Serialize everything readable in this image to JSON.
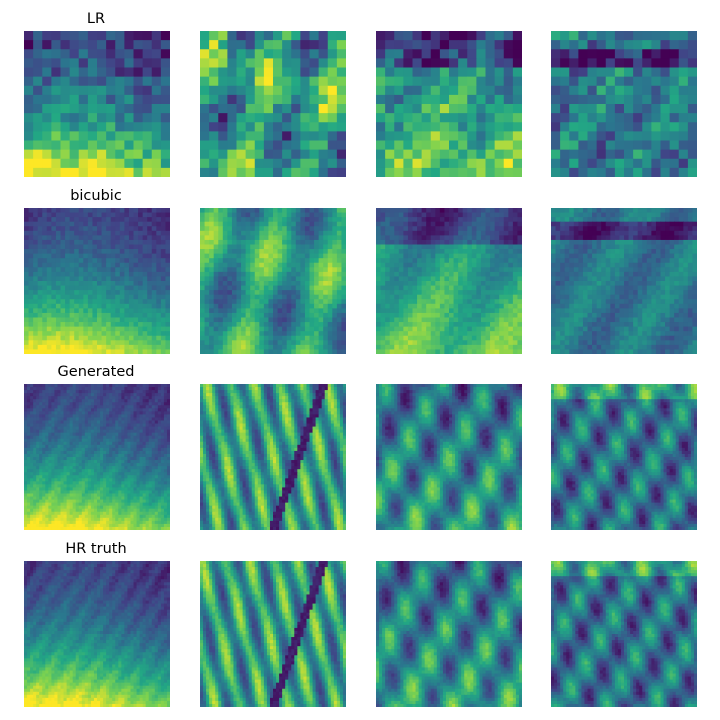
{
  "figure": {
    "row_titles": [
      "LR",
      "bicubic",
      "Generated",
      "HR truth"
    ],
    "colormap": [
      "#440154",
      "#414487",
      "#2a788e",
      "#22a884",
      "#7ad151",
      "#fde725"
    ]
  }
}
